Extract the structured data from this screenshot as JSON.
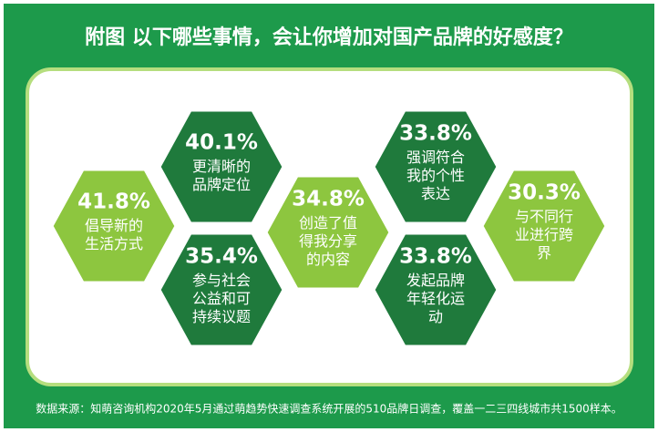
{
  "chart_data": {
    "type": "hexagon",
    "title": "附图  以下哪些事情，会让你增加对国产品牌的好感度？",
    "categories": [
      "倡导新的生活方式",
      "更清晰的品牌定位",
      "参与社会公益和可持续议题",
      "创造了值得我分享的内容",
      "强调符合我的个性表达",
      "发起品牌年轻化运动",
      "与不同行业进行跨界"
    ],
    "values": [
      41.8,
      40.1,
      35.4,
      34.8,
      33.8,
      33.8,
      30.3
    ],
    "value_labels": [
      "41.8%",
      "40.1%",
      "35.4%",
      "34.8%",
      "33.8%",
      "33.8%",
      "30.3%"
    ],
    "colors": [
      "#8dc63f",
      "#1f7a3c",
      "#1f7a3c",
      "#8dc63f",
      "#1f7a3c",
      "#1f7a3c",
      "#8dc63f"
    ],
    "source": "数据来源：知萌咨询机构2020年5月通过萌趋势快速调查系统开展的510品牌日调查，覆盖一二三四线城市共1500样本。"
  }
}
